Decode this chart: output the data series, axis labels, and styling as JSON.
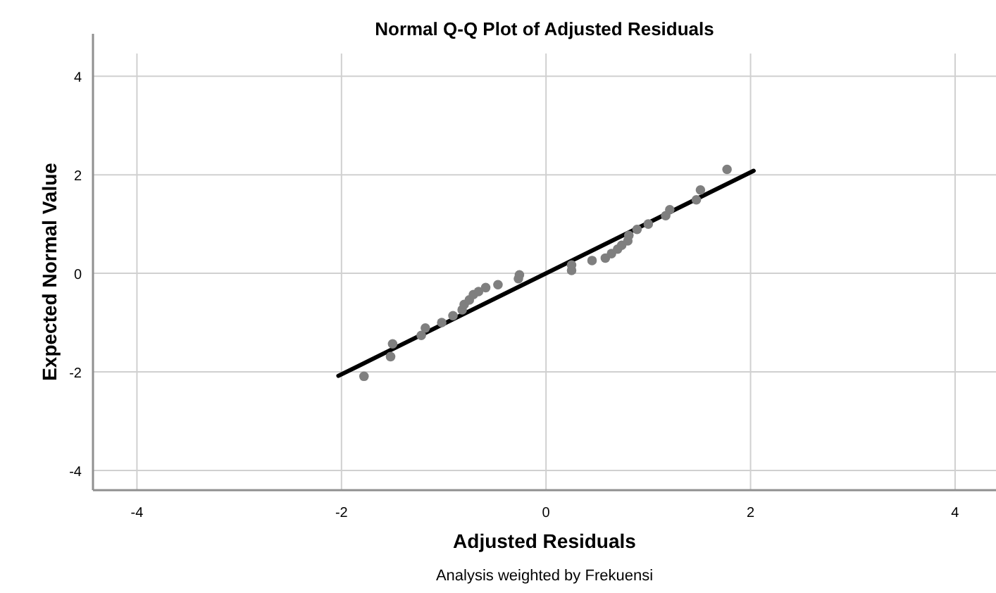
{
  "chart_data": {
    "type": "scatter",
    "title": "Normal Q-Q Plot of Adjusted Residuals",
    "xlabel": "Adjusted Residuals",
    "ylabel": "Expected Normal Value",
    "annotations": [
      "Analysis weighted by Frekuensi"
    ],
    "xlim": [
      -4.43,
      4.4
    ],
    "ylim": [
      -4.4,
      4.46
    ],
    "xticks": [
      -4,
      -2,
      0,
      2,
      4
    ],
    "yticks": [
      -4,
      -2,
      0,
      2,
      4
    ],
    "grid": true,
    "series": [
      {
        "color": "#7f7f7f",
        "marker": "circle",
        "x": [
          -1.78,
          -1.52,
          -1.5,
          -1.22,
          -1.18,
          -1.02,
          -0.91,
          -0.82,
          -0.8,
          -0.75,
          -0.71,
          -0.66,
          -0.59,
          -0.47,
          -0.27,
          -0.26,
          0.25,
          0.25,
          0.45,
          0.58,
          0.64,
          0.7,
          0.74,
          0.8,
          0.81,
          0.89,
          1.0,
          1.17,
          1.21,
          1.47,
          1.51,
          1.77
        ],
        "values": [
          -2.09,
          -1.69,
          -1.43,
          -1.26,
          -1.11,
          -1.0,
          -0.86,
          -0.74,
          -0.63,
          -0.54,
          -0.43,
          -0.37,
          -0.29,
          -0.23,
          -0.11,
          -0.03,
          0.06,
          0.17,
          0.26,
          0.31,
          0.4,
          0.49,
          0.57,
          0.66,
          0.77,
          0.89,
          1.0,
          1.17,
          1.29,
          1.49,
          1.69,
          2.11
        ]
      },
      {
        "type": "line",
        "color": "#000000",
        "line_style": "solid",
        "marker": "none",
        "x": [
          -2.03,
          2.03
        ],
        "values": [
          -2.08,
          2.08
        ]
      }
    ]
  }
}
